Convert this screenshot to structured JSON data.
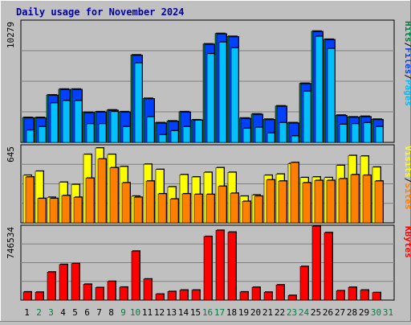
{
  "title": "Daily usage for November 2024",
  "colors": {
    "background": "#c0c0c0",
    "title": "#0000a0",
    "pages": "#00c0ff",
    "files": "#0040ff",
    "hits": "#008040",
    "sites": "#ff8000",
    "visits": "#ffff00",
    "kbytes": "#ff0000",
    "weekend_day": "#008040",
    "weekday": "#000000"
  },
  "panels": {
    "top": {
      "max_label": "10279",
      "legend": [
        {
          "text": "Pages",
          "color_key": "pages"
        },
        {
          "text": "/",
          "color_key": "weekday"
        },
        {
          "text": "Files",
          "color_key": "files"
        },
        {
          "text": "/",
          "color_key": "weekday"
        },
        {
          "text": "Hits",
          "color_key": "hits"
        }
      ]
    },
    "mid": {
      "max_label": "645",
      "legend": [
        {
          "text": "Sites",
          "color_key": "sites"
        },
        {
          "text": "/",
          "color_key": "weekday"
        },
        {
          "text": "Visits",
          "color_key": "visits"
        }
      ]
    },
    "bottom": {
      "max_label": "746534",
      "legend": [
        {
          "text": "KBytes",
          "color_key": "kbytes"
        }
      ]
    }
  },
  "chart_data": {
    "type": "bar",
    "title": "Daily usage for November 2024",
    "x": [
      "1",
      "2",
      "3",
      "4",
      "5",
      "6",
      "7",
      "8",
      "9",
      "10",
      "11",
      "12",
      "13",
      "14",
      "15",
      "16",
      "17",
      "18",
      "19",
      "20",
      "21",
      "22",
      "23",
      "24",
      "25",
      "26",
      "27",
      "28",
      "29",
      "30",
      "31"
    ],
    "weekend_days": [
      2,
      3,
      9,
      10,
      16,
      17,
      23,
      24,
      30,
      31
    ],
    "series": [
      {
        "name": "Hits",
        "panel": "top",
        "values": [
          2150,
          2150,
          4100,
          4600,
          4600,
          2600,
          2650,
          2800,
          2650,
          7550,
          3800,
          1700,
          1850,
          2650,
          1950,
          8500,
          9400,
          9150,
          2100,
          2450,
          2000,
          3150,
          1700,
          5100,
          9600,
          8900,
          2350,
          2200,
          2250,
          2000,
          null
        ]
      },
      {
        "name": "Files",
        "panel": "top",
        "values": [
          2100,
          2100,
          4050,
          4550,
          4550,
          2550,
          2600,
          2750,
          2600,
          7500,
          3750,
          1650,
          1800,
          2600,
          1900,
          8450,
          9350,
          9100,
          2050,
          2400,
          1950,
          3100,
          1650,
          5050,
          9550,
          8850,
          2300,
          2150,
          2200,
          1950,
          null
        ]
      },
      {
        "name": "Pages",
        "panel": "top",
        "values": [
          1050,
          1350,
          3400,
          3600,
          3600,
          1600,
          1600,
          2650,
          1350,
          6850,
          2200,
          650,
          1000,
          1350,
          1900,
          7650,
          8650,
          8150,
          1200,
          1300,
          800,
          1700,
          550,
          4400,
          9150,
          8100,
          1550,
          1600,
          1700,
          1350,
          null
        ]
      },
      {
        "name": "Visits",
        "panel": "mid",
        "values": [
          410,
          445,
          220,
          350,
          330,
          590,
          645,
          590,
          485,
          230,
          505,
          460,
          310,
          415,
          395,
          435,
          475,
          435,
          230,
          240,
          410,
          420,
          510,
          390,
          395,
          390,
          495,
          580,
          575,
          480,
          null
        ]
      },
      {
        "name": "Sites",
        "panel": "mid",
        "values": [
          395,
          210,
          210,
          235,
          220,
          385,
          550,
          475,
          345,
          220,
          360,
          250,
          205,
          250,
          245,
          245,
          315,
          255,
          185,
          230,
          370,
          360,
          520,
          345,
          365,
          365,
          380,
          415,
          410,
          360,
          null
        ]
      },
      {
        "name": "KBytes",
        "panel": "bottom",
        "values": [
          85000,
          82000,
          292000,
          371000,
          380000,
          165000,
          130000,
          195000,
          135000,
          510000,
          220000,
          62000,
          89000,
          104000,
          104000,
          663000,
          727000,
          708000,
          85000,
          133000,
          82000,
          158000,
          48000,
          350000,
          770000,
          703000,
          97000,
          133000,
          104000,
          78000,
          null
        ]
      }
    ],
    "ylim_top": [
      0,
      10279
    ],
    "ylim_mid": [
      0,
      645
    ],
    "ylim_bottom": [
      0,
      746534
    ]
  }
}
